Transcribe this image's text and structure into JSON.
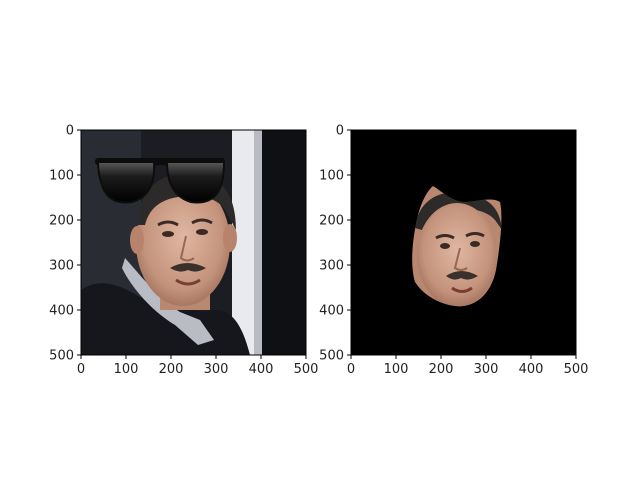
{
  "figure": {
    "background": "#ffffff",
    "panels": [
      {
        "name": "original-with-sunglasses",
        "image_size": [
          500,
          500
        ],
        "xticks": [
          "0",
          "100",
          "200",
          "300",
          "400",
          "500"
        ],
        "yticks": [
          "0",
          "100",
          "200",
          "300",
          "400",
          "500"
        ],
        "content": "photo of man in dark coat and scarf with cartoon sunglasses overlay"
      },
      {
        "name": "face-mask-extraction",
        "image_size": [
          500,
          500
        ],
        "xticks": [
          "0",
          "100",
          "200",
          "300",
          "400",
          "500"
        ],
        "yticks": [
          "0",
          "100",
          "200",
          "300",
          "400",
          "500"
        ],
        "background": "#000000",
        "content": "extracted face region on black background"
      }
    ]
  },
  "colors": {
    "background_photo": "#1b1d22",
    "coat": "#15171c",
    "skin": "#c89a84",
    "hair": "#2d2a2a",
    "column": "#e8eaed",
    "sunglasses": "#0d0d0d",
    "mask_bg": "#000000"
  }
}
